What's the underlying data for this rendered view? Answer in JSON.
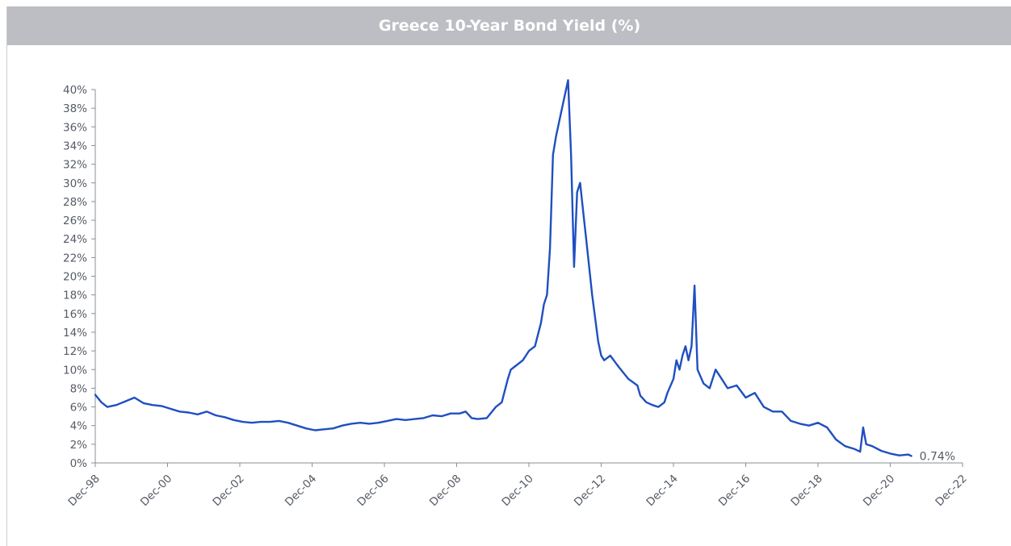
{
  "chart_data": {
    "type": "line",
    "title": "Greece 10-Year Bond Yield (%)",
    "xlabel": "",
    "ylabel": "",
    "x_tick_labels": [
      "Dec-98",
      "Dec-00",
      "Dec-02",
      "Dec-04",
      "Dec-06",
      "Dec-08",
      "Dec-10",
      "Dec-12",
      "Dec-14",
      "Dec-16",
      "Dec-18",
      "Dec-20",
      "Dec-22"
    ],
    "xlim": [
      "1998-12",
      "2022-12"
    ],
    "ylim": [
      0,
      40
    ],
    "y_tick_labels": [
      "0%",
      "2%",
      "4%",
      "6%",
      "8%",
      "10%",
      "12%",
      "14%",
      "16%",
      "18%",
      "20%",
      "22%",
      "24%",
      "26%",
      "28%",
      "30%",
      "32%",
      "34%",
      "36%",
      "38%",
      "40%"
    ],
    "grid": false,
    "legend": "none",
    "color": "#1f4fc1",
    "end_label": "0.74%",
    "series": [
      {
        "x": [
          "1998-12",
          "1999-02",
          "1999-04",
          "1999-07",
          "1999-10",
          "2000-01",
          "2000-04",
          "2000-07",
          "2000-10",
          "2001-01",
          "2001-04",
          "2001-07",
          "2001-10",
          "2002-01",
          "2002-04",
          "2002-07",
          "2002-10",
          "2003-01",
          "2003-04",
          "2003-07",
          "2003-10",
          "2004-01",
          "2004-04",
          "2004-07",
          "2004-10",
          "2005-01",
          "2005-04",
          "2005-07",
          "2005-10",
          "2006-01",
          "2006-04",
          "2006-07",
          "2006-10",
          "2007-01",
          "2007-04",
          "2007-07",
          "2007-10",
          "2008-01",
          "2008-04",
          "2008-07",
          "2008-10",
          "2009-01",
          "2009-03",
          "2009-05",
          "2009-07",
          "2009-10",
          "2010-01",
          "2010-03",
          "2010-05",
          "2010-06",
          "2010-08",
          "2010-10",
          "2010-12",
          "2011-02",
          "2011-04",
          "2011-05",
          "2011-06",
          "2011-07",
          "2011-08",
          "2011-09",
          "2011-11",
          "2012-01",
          "2012-02",
          "2012-03",
          "2012-04",
          "2012-05",
          "2012-06",
          "2012-07",
          "2012-09",
          "2012-11",
          "2012-12",
          "2013-01",
          "2013-03",
          "2013-06",
          "2013-09",
          "2013-12",
          "2014-01",
          "2014-03",
          "2014-05",
          "2014-07",
          "2014-09",
          "2014-10",
          "2014-12",
          "2015-01",
          "2015-02",
          "2015-03",
          "2015-04",
          "2015-05",
          "2015-06",
          "2015-07",
          "2015-08",
          "2015-10",
          "2015-12",
          "2016-02",
          "2016-04",
          "2016-06",
          "2016-09",
          "2016-12",
          "2017-03",
          "2017-06",
          "2017-09",
          "2017-12",
          "2018-03",
          "2018-06",
          "2018-09",
          "2018-12",
          "2019-03",
          "2019-06",
          "2019-09",
          "2019-12",
          "2020-02",
          "2020-03",
          "2020-04",
          "2020-06",
          "2020-09",
          "2020-12",
          "2021-03",
          "2021-06",
          "2021-07"
        ],
        "values": [
          7.3,
          6.5,
          6.0,
          6.2,
          6.6,
          7.0,
          6.4,
          6.2,
          6.1,
          5.8,
          5.5,
          5.4,
          5.2,
          5.5,
          5.1,
          4.9,
          4.6,
          4.4,
          4.3,
          4.4,
          4.4,
          4.5,
          4.3,
          4.0,
          3.7,
          3.5,
          3.6,
          3.7,
          4.0,
          4.2,
          4.3,
          4.2,
          4.3,
          4.5,
          4.7,
          4.6,
          4.7,
          4.8,
          5.1,
          5.0,
          5.3,
          5.3,
          5.5,
          4.8,
          4.7,
          4.8,
          6.0,
          6.5,
          9.0,
          10.0,
          10.5,
          11.0,
          12.0,
          12.5,
          15.0,
          17.0,
          18.0,
          23.0,
          33.0,
          35.0,
          38.0,
          41.0,
          33.0,
          21.0,
          29.0,
          30.0,
          27.0,
          24.0,
          18.0,
          13.0,
          11.5,
          11.0,
          11.5,
          10.2,
          9.0,
          8.3,
          7.2,
          6.5,
          6.2,
          6.0,
          6.5,
          7.5,
          9.0,
          11.0,
          10.0,
          11.5,
          12.5,
          11.0,
          12.5,
          19.0,
          10.0,
          8.5,
          8.0,
          10.0,
          9.0,
          8.0,
          8.3,
          7.0,
          7.5,
          6.0,
          5.5,
          5.5,
          4.5,
          4.2,
          4.0,
          4.3,
          3.8,
          2.5,
          1.8,
          1.5,
          1.2,
          3.8,
          2.0,
          1.8,
          1.3,
          1.0,
          0.8,
          0.9,
          0.74
        ]
      }
    ]
  }
}
